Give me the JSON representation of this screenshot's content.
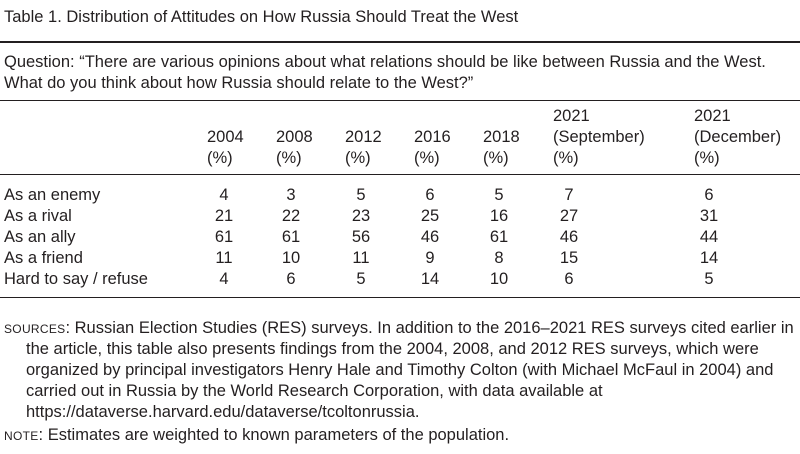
{
  "table": {
    "title": "Table 1. Distribution of Attitudes on How Russia Should Treat the West",
    "question": "Question: “There are various opinions about what relations should be like between Russia and the West. What do you think about how Russia should relate to the West?”",
    "columns": [
      {
        "line1": "",
        "line2": "2004",
        "unit": "(%)"
      },
      {
        "line1": "",
        "line2": "2008",
        "unit": "(%)"
      },
      {
        "line1": "",
        "line2": "2012",
        "unit": "(%)"
      },
      {
        "line1": "",
        "line2": "2016",
        "unit": "(%)"
      },
      {
        "line1": "",
        "line2": "2018",
        "unit": "(%)"
      },
      {
        "line1": "2021",
        "line2": "(September)",
        "unit": "(%)"
      },
      {
        "line1": "2021",
        "line2": "(December)",
        "unit": "(%)"
      }
    ],
    "rows": [
      {
        "label": "As an enemy",
        "values": [
          "4",
          "3",
          "5",
          "6",
          "5",
          "7",
          "6"
        ]
      },
      {
        "label": "As a rival",
        "values": [
          "21",
          "22",
          "23",
          "25",
          "16",
          "27",
          "31"
        ]
      },
      {
        "label": "As an ally",
        "values": [
          "61",
          "61",
          "56",
          "46",
          "61",
          "46",
          "44"
        ]
      },
      {
        "label": "As a friend",
        "values": [
          "11",
          "10",
          "11",
          "9",
          "8",
          "15",
          "14"
        ]
      },
      {
        "label": "Hard to say / refuse",
        "values": [
          "4",
          "6",
          "5",
          "14",
          "10",
          "6",
          "5"
        ]
      }
    ]
  },
  "sources": {
    "label": "SOURCES",
    "text": ": Russian Election Studies (RES) surveys. In addition to the 2016–2021 RES surveys cited earlier in the article, this table also presents findings from the 2004, 2008, and 2012 RES surveys, which were organized by principal investigators Henry Hale and Timothy Colton (with Michael McFaul in 2004) and carried out in Russia by the World Research Corporation, with data available at https://dataverse.harvard.edu/dataverse/tcoltonrussia."
  },
  "note": {
    "label": "NOTE",
    "text": ": Estimates are weighted to known parameters of the population."
  }
}
